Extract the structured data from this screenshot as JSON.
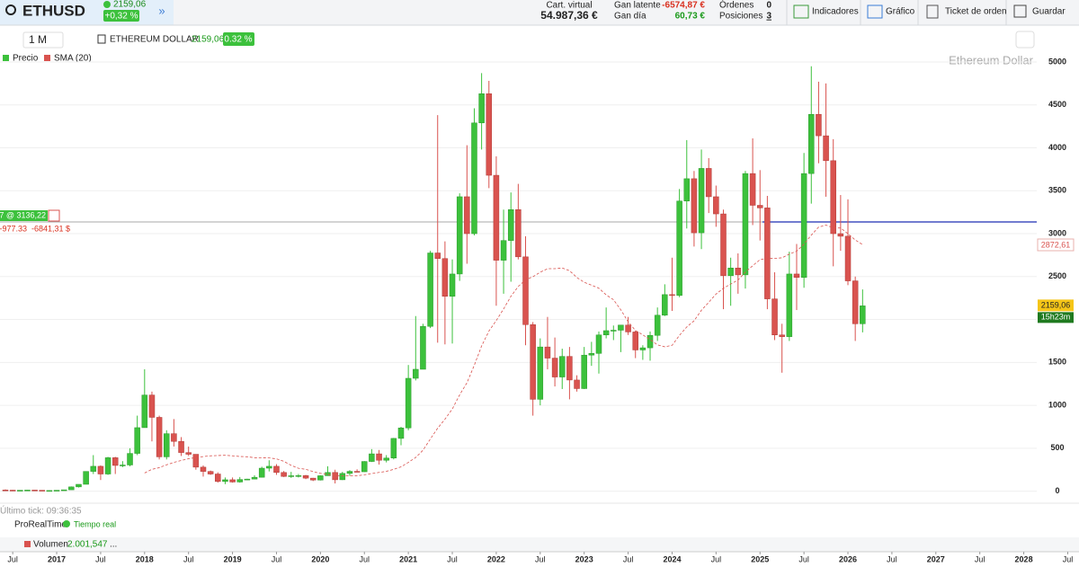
{
  "header": {
    "symbol": "ETHUSD",
    "price": "2159,06",
    "change": "+0,32 %",
    "cart_label": "Cart. virtual",
    "cart_value": "54.987,36 €",
    "latente_label": "Gan latente",
    "latente": "-6574,87 €",
    "dia_label": "Gan día",
    "dia": "60,73 €",
    "ordenes_label": "Órdenes",
    "ordenes": "0",
    "posiciones_label": "Posiciones",
    "posiciones": "3",
    "buttons": [
      "Indicadores",
      "Gráfico",
      "Ticket de orden",
      "Guardar"
    ]
  },
  "toolbar": {
    "period": "1 M",
    "instrument": "ETHEREUM DOLLAR",
    "price": "2159,06",
    "change": "0.32 %"
  },
  "chart_data": {
    "type": "candlestick",
    "watermark": "Ethereum Dollar",
    "legend": [
      "Precio",
      "SMA (20)"
    ],
    "up_color": "#3cc13c",
    "down_color": "#d9534f",
    "sma_color": "#d9534f",
    "sma_period": 20,
    "open": [
      14,
      12,
      11,
      11,
      13,
      11,
      8,
      8,
      11,
      16,
      50,
      80,
      230,
      290,
      200,
      390,
      300,
      305,
      440,
      740,
      1120,
      860,
      400,
      670,
      580,
      450,
      430,
      280,
      230,
      200,
      113,
      133,
      107,
      136,
      141,
      162,
      268,
      290,
      218,
      172,
      180,
      182,
      152,
      130,
      180,
      218,
      133,
      207,
      231,
      226,
      346,
      435,
      360,
      386,
      615,
      737,
      1315,
      1420,
      1920,
      2775,
      2710,
      2270,
      2530,
      3430,
      3000,
      4290,
      4630,
      3680,
      2690,
      2920,
      3280,
      2730,
      1940,
      1070,
      1680,
      1550,
      1330,
      1570,
      1295,
      1195,
      1585,
      1605,
      1820,
      1870,
      1875,
      1935,
      1855,
      1645,
      1670,
      1815,
      2050,
      2290,
      2280,
      3380,
      3640,
      3010,
      3760,
      3430,
      3230,
      2510,
      2600,
      2520,
      3700,
      3330,
      3300,
      2240,
      1820,
      1800,
      2530,
      2490,
      3700,
      4390,
      4140,
      3850,
      3000,
      2970,
      2450,
      1950
    ],
    "high": [
      21,
      14,
      12,
      14,
      13,
      11,
      9,
      11,
      17,
      55,
      80,
      230,
      420,
      300,
      400,
      400,
      350,
      500,
      880,
      1420,
      1160,
      880,
      710,
      840,
      630,
      520,
      430,
      300,
      240,
      220,
      160,
      160,
      165,
      145,
      185,
      285,
      360,
      315,
      235,
      225,
      200,
      190,
      155,
      185,
      290,
      250,
      225,
      245,
      255,
      350,
      490,
      480,
      420,
      620,
      750,
      1470,
      2040,
      1950,
      2800,
      4380,
      2910,
      2700,
      3470,
      4030,
      4460,
      4870,
      4780,
      3900,
      3280,
      3480,
      3580,
      2970,
      1970,
      1780,
      2030,
      1790,
      1660,
      1680,
      1350,
      1680,
      1740,
      1860,
      2140,
      1930,
      1930,
      2030,
      1870,
      1700,
      1860,
      2140,
      2410,
      2720,
      3520,
      4090,
      3730,
      3980,
      3880,
      3560,
      3280,
      2720,
      2770,
      3730,
      4110,
      3740,
      3440,
      2550,
      1950,
      2790,
      2880,
      3940,
      4950,
      4770,
      4750,
      4100,
      3450,
      3400,
      2500,
      2350
    ],
    "low": [
      11,
      10,
      10,
      11,
      10,
      8,
      7,
      8,
      10,
      16,
      43,
      80,
      200,
      130,
      190,
      200,
      280,
      290,
      420,
      740,
      580,
      370,
      370,
      520,
      410,
      410,
      250,
      170,
      190,
      100,
      82,
      100,
      100,
      130,
      140,
      160,
      230,
      190,
      165,
      155,
      160,
      140,
      118,
      125,
      180,
      90,
      130,
      180,
      220,
      225,
      340,
      310,
      335,
      370,
      535,
      710,
      1290,
      1430,
      1900,
      1730,
      1710,
      1720,
      2450,
      2650,
      2980,
      3980,
      3530,
      2160,
      2300,
      2440,
      2700,
      1700,
      880,
      1000,
      1420,
      1220,
      1190,
      1070,
      1160,
      1190,
      1460,
      1370,
      1780,
      1760,
      1620,
      1820,
      1550,
      1530,
      1520,
      1750,
      2040,
      2100,
      2260,
      3060,
      2850,
      2820,
      3240,
      3080,
      2120,
      2160,
      2300,
      2360,
      3100,
      2920,
      2120,
      1760,
      1380,
      1750,
      2110,
      2370,
      3350,
      3820,
      3430,
      2620,
      2800,
      2400,
      1750,
      1850
    ],
    "close": [
      12,
      11,
      11,
      13,
      11,
      8,
      8,
      11,
      16,
      50,
      80,
      230,
      290,
      200,
      390,
      300,
      305,
      440,
      740,
      1120,
      860,
      400,
      670,
      580,
      450,
      430,
      280,
      230,
      200,
      113,
      133,
      107,
      136,
      141,
      162,
      268,
      290,
      218,
      172,
      180,
      182,
      152,
      130,
      180,
      218,
      133,
      207,
      231,
      226,
      346,
      435,
      360,
      386,
      615,
      737,
      1315,
      1420,
      1920,
      2775,
      2710,
      2270,
      2530,
      3430,
      3000,
      4290,
      4630,
      3680,
      2690,
      2920,
      3280,
      2730,
      1940,
      1070,
      1680,
      1550,
      1330,
      1570,
      1295,
      1195,
      1585,
      1605,
      1820,
      1870,
      1875,
      1935,
      1855,
      1645,
      1670,
      1815,
      2050,
      2290,
      2280,
      3380,
      3640,
      3010,
      3760,
      3430,
      3230,
      2510,
      2600,
      2520,
      3700,
      3330,
      3300,
      2240,
      1820,
      1800,
      2530,
      2490,
      3700,
      4390,
      4140,
      3850,
      3000,
      2970,
      2450,
      1950,
      2159.06
    ],
    "ylim": [
      -140,
      5010
    ],
    "yticks": [
      0,
      500,
      1000,
      1500,
      2000,
      2500,
      3000,
      3500,
      4000,
      4500,
      5000
    ],
    "xticks": [
      {
        "value": 1,
        "label": "Jul"
      },
      {
        "value": 7,
        "label": "2017"
      },
      {
        "value": 13,
        "label": "Jul"
      },
      {
        "value": 19,
        "label": "2018"
      },
      {
        "value": 25,
        "label": "Jul"
      },
      {
        "value": 31,
        "label": "2019"
      },
      {
        "value": 37,
        "label": "Jul"
      },
      {
        "value": 43,
        "label": "2020"
      },
      {
        "value": 49,
        "label": "Jul"
      },
      {
        "value": 55,
        "label": "2021"
      },
      {
        "value": 61,
        "label": "Jul"
      },
      {
        "value": 67,
        "label": "2022"
      },
      {
        "value": 73,
        "label": "Jul"
      },
      {
        "value": 79,
        "label": "2023"
      },
      {
        "value": 85,
        "label": "Jul"
      },
      {
        "value": 91,
        "label": "2024"
      },
      {
        "value": 97,
        "label": "Jul"
      },
      {
        "value": 103,
        "label": "2025"
      },
      {
        "value": 109,
        "label": "Jul"
      },
      {
        "value": 115,
        "label": "2026"
      },
      {
        "value": 121,
        "label": "Jul"
      },
      {
        "value": 127,
        "label": "2027"
      },
      {
        "value": 133,
        "label": "Jul"
      },
      {
        "value": 139,
        "label": "2028"
      },
      {
        "value": 145,
        "label": "Jul"
      }
    ],
    "position": {
      "price": 3136.22,
      "label": "7 @ 3136,22",
      "points": "-977.33",
      "pl": "-6841,31 $"
    },
    "last_label": "2159,06",
    "countdown": "15h23m",
    "sma_label": "2872,61"
  },
  "footer": {
    "last_tick": "Último tick: 09:36:35",
    "feed": "ProRealTime",
    "status": "Tiempo real",
    "volume_label": "Volumen",
    "volume_value": "2.001,547",
    "more": "..."
  }
}
